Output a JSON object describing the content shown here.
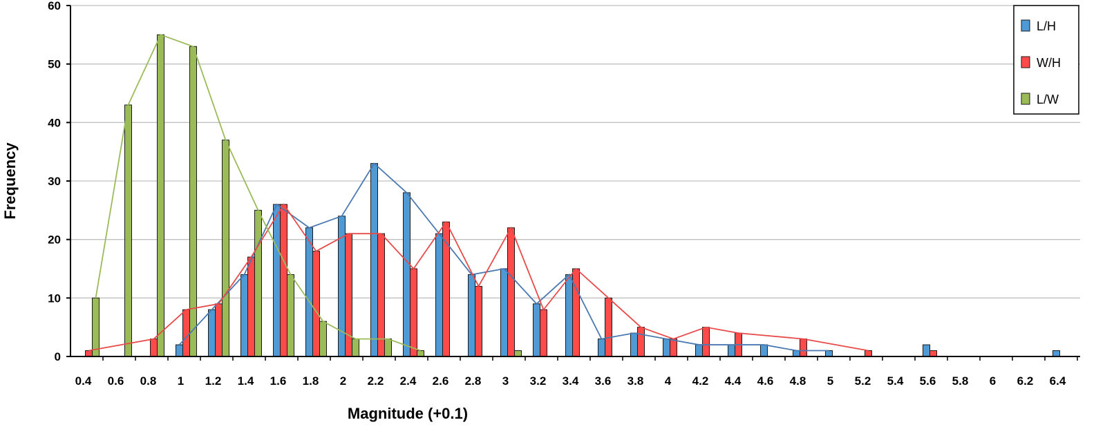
{
  "chart_data": {
    "type": "bar",
    "title": "",
    "xlabel": "Magnitude (+0.1)",
    "ylabel": "Frequency",
    "ylim": [
      0,
      60
    ],
    "yticks": [
      0,
      10,
      20,
      30,
      40,
      50,
      60
    ],
    "grid": "horizontal",
    "legend_position": "top-right",
    "categories": [
      "0.4",
      "0.6",
      "0.8",
      "1",
      "1.2",
      "1.4",
      "1.6",
      "1.8",
      "2",
      "2.2",
      "2.4",
      "2.6",
      "2.8",
      "3",
      "3.2",
      "3.4",
      "3.6",
      "3.8",
      "4",
      "4.2",
      "4.4",
      "4.6",
      "4.8",
      "5",
      "5.2",
      "5.4",
      "5.6",
      "5.8",
      "6",
      "6.2",
      "6.4"
    ],
    "series": [
      {
        "name": "L/H",
        "color": "#4f9ad4",
        "line_color": "#4a78b0",
        "values": [
          0,
          0,
          0,
          2,
          8,
          14,
          26,
          22,
          24,
          33,
          28,
          21,
          14,
          15,
          9,
          14,
          3,
          4,
          3,
          2,
          2,
          2,
          1,
          1,
          0,
          0,
          2,
          0,
          0,
          0,
          1
        ],
        "line_range": [
          "1",
          "5"
        ]
      },
      {
        "name": "W/H",
        "color": "#ff4a4a",
        "line_color": "#e84a4a",
        "values": [
          1,
          0,
          3,
          8,
          9,
          17,
          26,
          18,
          21,
          21,
          15,
          23,
          12,
          22,
          8,
          15,
          10,
          5,
          3,
          5,
          4,
          0,
          3,
          0,
          1,
          0,
          1,
          0,
          0,
          0,
          0
        ],
        "line_range": [
          "0.4",
          "5.2"
        ]
      },
      {
        "name": "L/W",
        "color": "#9bbb59",
        "line_color": "#9bbb59",
        "values": [
          10,
          43,
          55,
          53,
          37,
          25,
          14,
          6,
          3,
          3,
          1,
          0,
          0,
          1,
          0,
          0,
          0,
          0,
          0,
          0,
          0,
          0,
          0,
          0,
          0,
          0,
          0,
          0,
          0,
          0,
          0
        ],
        "line_range": [
          "0.4",
          "2.4"
        ]
      }
    ]
  }
}
